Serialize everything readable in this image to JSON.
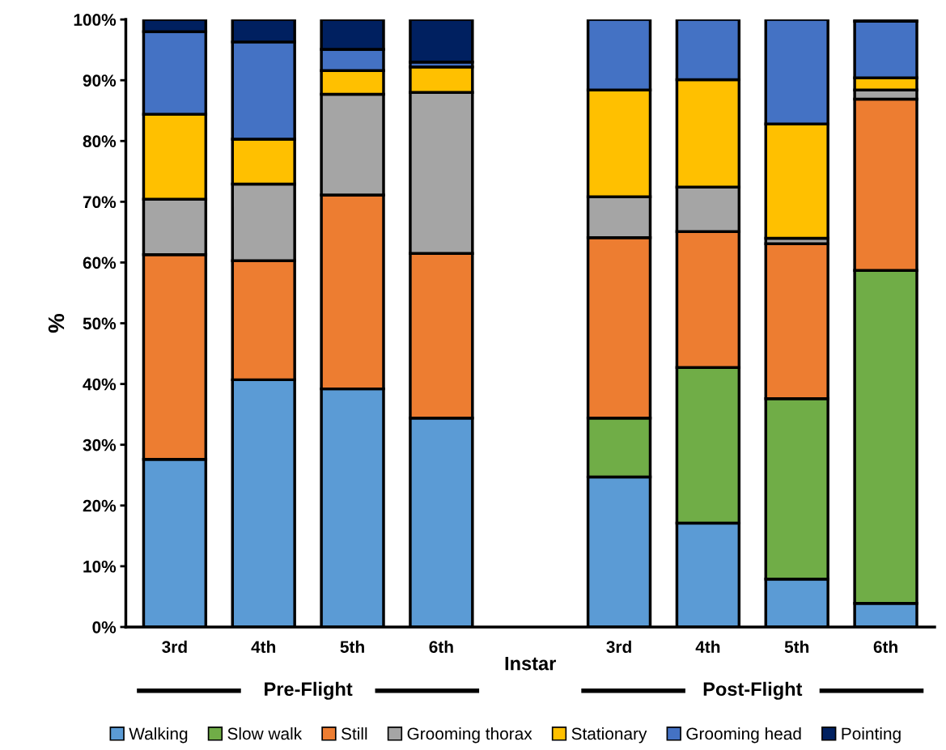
{
  "chart_data": {
    "type": "bar",
    "stacked": true,
    "xlabel": "Instar",
    "ylabel": "%",
    "categories": [
      "3rd",
      "4th",
      "5th",
      "6th",
      null,
      "3rd",
      "4th",
      "5th",
      "6th"
    ],
    "series": [
      {
        "name": "Walking",
        "color": "#5b9bd5",
        "values": [
          27.6,
          40.7,
          39.2,
          34.4,
          null,
          24.7,
          17.1,
          7.9,
          3.9
        ]
      },
      {
        "name": "Slow walk",
        "color": "#70ad47",
        "values": [
          null,
          null,
          null,
          null,
          null,
          9.7,
          25.6,
          29.7,
          54.8
        ]
      },
      {
        "name": "Still",
        "color": "#ed7d31",
        "values": [
          33.7,
          19.6,
          31.9,
          27.1,
          null,
          29.7,
          22.4,
          25.5,
          28.2
        ]
      },
      {
        "name": "Grooming thorax",
        "color": "#a5a5a5",
        "values": [
          9.1,
          12.6,
          16.6,
          26.5,
          null,
          6.7,
          7.3,
          0.9,
          1.5
        ]
      },
      {
        "name": "Stationary",
        "color": "#ffc000",
        "values": [
          14.0,
          7.4,
          3.9,
          4.2,
          null,
          17.6,
          17.7,
          18.8,
          2.0
        ]
      },
      {
        "name": "Grooming head",
        "color": "#4472c4",
        "values": [
          13.6,
          16.0,
          3.5,
          0.8,
          null,
          11.6,
          9.9,
          17.2,
          9.3
        ]
      },
      {
        "name": "Pointing",
        "color": "#002060",
        "values": [
          2.0,
          3.7,
          4.9,
          7.0,
          null,
          null,
          null,
          null,
          0.3
        ]
      }
    ],
    "annotations": [
      "Pre-Flight",
      "Post-Flight"
    ],
    "ylim": [
      0,
      100
    ],
    "yticks": [
      {
        "value": 0,
        "label": "0%"
      },
      {
        "value": 10,
        "label": "10%"
      },
      {
        "value": 20,
        "label": "20%"
      },
      {
        "value": 30,
        "label": "30%"
      },
      {
        "value": 40,
        "label": "40%"
      },
      {
        "value": 50,
        "label": "50%"
      },
      {
        "value": 60,
        "label": "60%"
      },
      {
        "value": 70,
        "label": "70%"
      },
      {
        "value": 80,
        "label": "80%"
      },
      {
        "value": 90,
        "label": "90%"
      },
      {
        "value": 100,
        "label": "100%"
      }
    ],
    "grid": false,
    "legend": "bottom"
  }
}
